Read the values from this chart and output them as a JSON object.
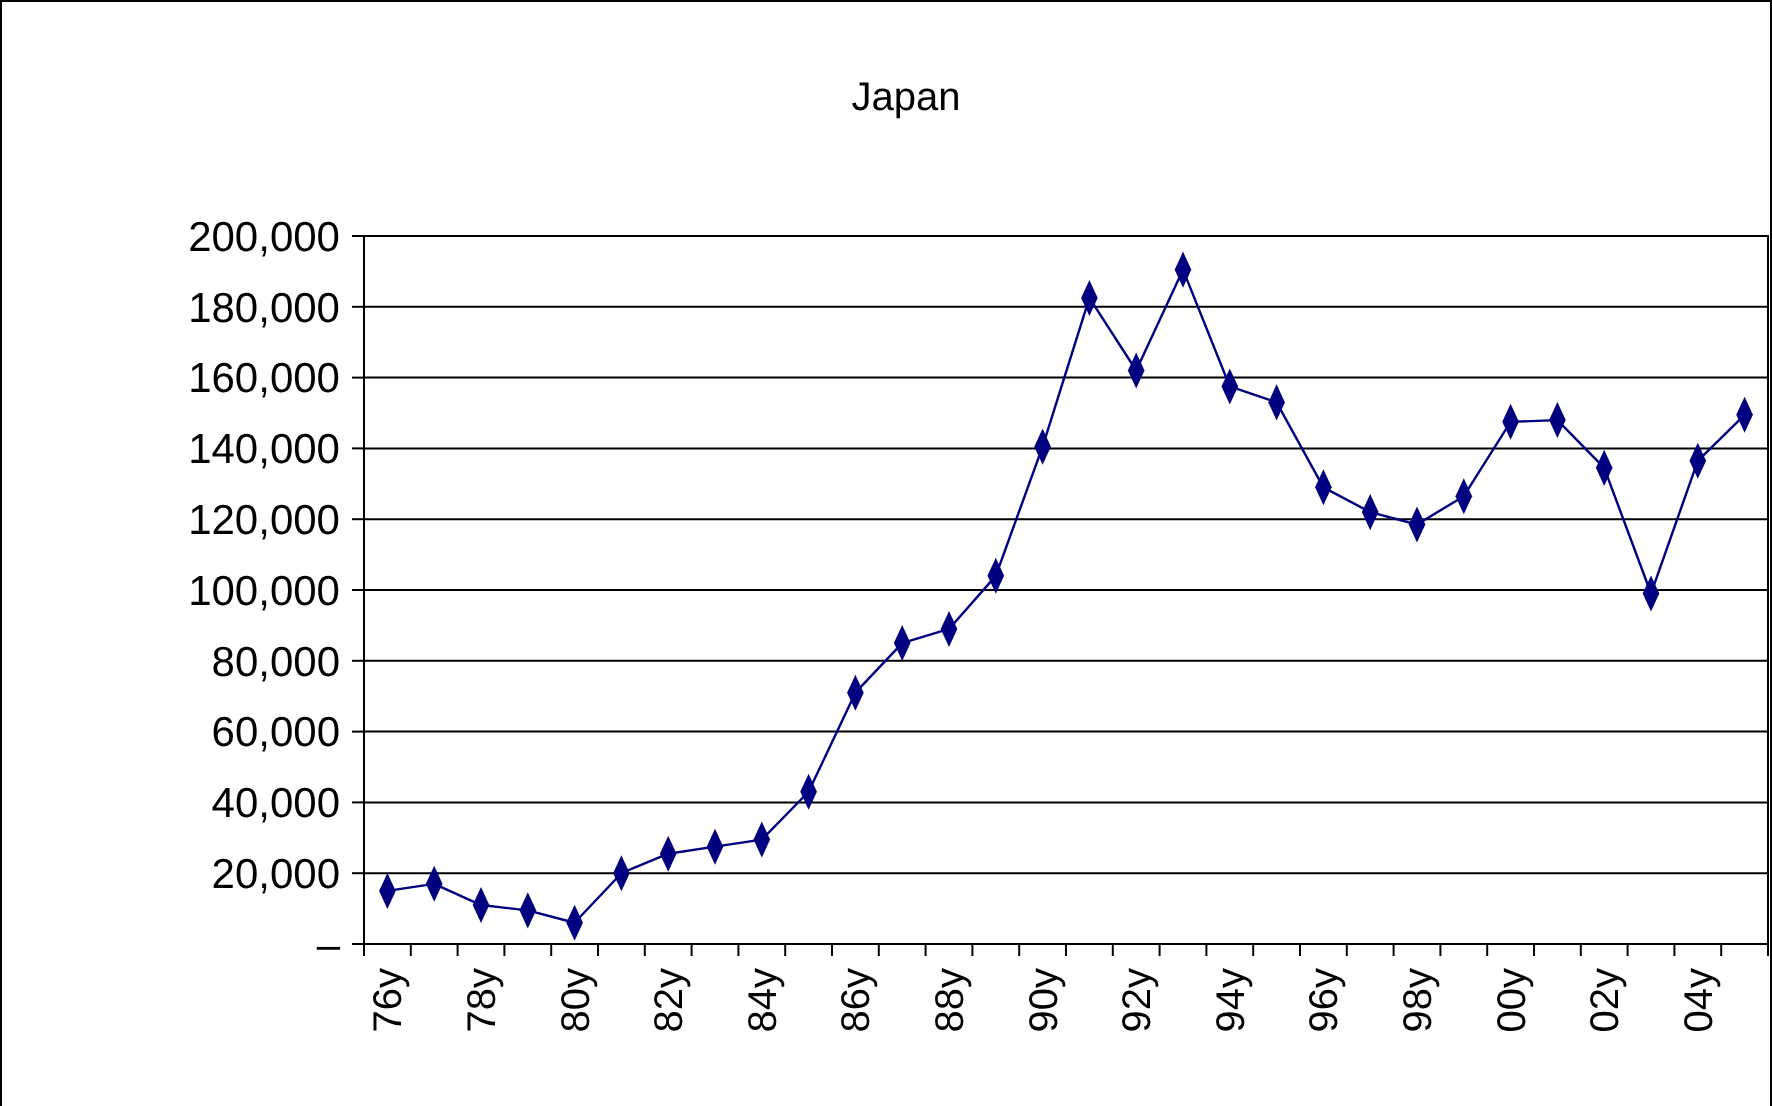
{
  "chart_data": {
    "type": "line",
    "title": "Japan",
    "categories": [
      "76y",
      null,
      "78y",
      null,
      "80y",
      null,
      "82y",
      null,
      "84y",
      null,
      "86y",
      null,
      "88y",
      null,
      "90y",
      null,
      "92y",
      null,
      "94y",
      null,
      "96y",
      null,
      "98y",
      null,
      "00y",
      null,
      "02y",
      null,
      "04y",
      null
    ],
    "series": [
      {
        "color": "#000080",
        "values": [
          15000,
          17000,
          11000,
          9500,
          6000,
          20000,
          25500,
          27500,
          29500,
          43000,
          71000,
          85000,
          89000,
          104000,
          140500,
          182500,
          162000,
          190500,
          157500,
          153000,
          129000,
          122000,
          118500,
          126500,
          147500,
          148000,
          134500,
          99000,
          136500,
          149500
        ]
      }
    ],
    "ylim": [
      0,
      200000
    ],
    "yticks": [
      {
        "value": 0,
        "label": "–"
      },
      {
        "value": 20000,
        "label": "20,000"
      },
      {
        "value": 40000,
        "label": "40,000"
      },
      {
        "value": 60000,
        "label": "60,000"
      },
      {
        "value": 80000,
        "label": "80,000"
      },
      {
        "value": 100000,
        "label": "100,000"
      },
      {
        "value": 120000,
        "label": "120,000"
      },
      {
        "value": 140000,
        "label": "140,000"
      },
      {
        "value": 160000,
        "label": "160,000"
      },
      {
        "value": 180000,
        "label": "180,000"
      },
      {
        "value": 200000,
        "label": "200,000"
      }
    ],
    "grid": "y",
    "marker": "diamond",
    "line_style": "solid"
  }
}
